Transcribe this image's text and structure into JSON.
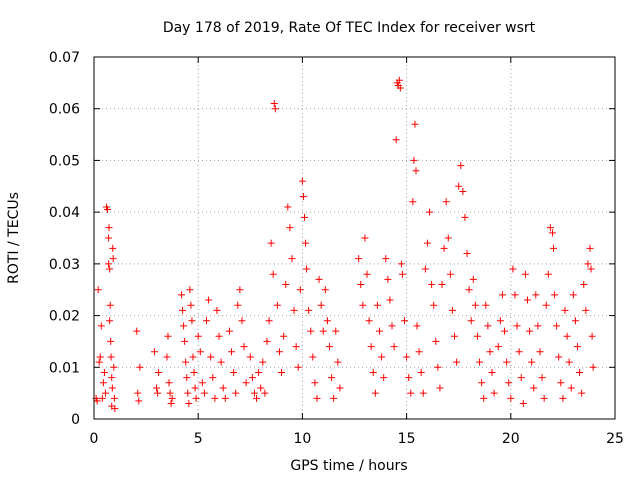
{
  "chart_data": {
    "type": "scatter",
    "title": "Day 178 of 2019, Rate Of TEC Index for receiver wsrt",
    "xlabel": "GPS time / hours",
    "ylabel": "ROTI / TECUs",
    "xlim": [
      0,
      25
    ],
    "ylim": [
      0,
      0.07
    ],
    "xticks": [
      0,
      5,
      10,
      15,
      20,
      25
    ],
    "yticks": [
      0,
      0.01,
      0.02,
      0.03,
      0.04,
      0.05,
      0.06,
      0.07
    ],
    "xtick_labels": [
      "0",
      "5",
      "10",
      "15",
      "20",
      "25"
    ],
    "ytick_labels": [
      "0",
      "0.01",
      "0.02",
      "0.03",
      "0.04",
      "0.05",
      "0.06",
      "0.07"
    ],
    "grid": true,
    "marker": "+",
    "color": "#ff0000",
    "series": [
      {
        "name": "ROTI",
        "points": [
          [
            0.1,
            0.004
          ],
          [
            0.15,
            0.0035
          ],
          [
            0.2,
            0.025
          ],
          [
            0.25,
            0.011
          ],
          [
            0.3,
            0.012
          ],
          [
            0.35,
            0.018
          ],
          [
            0.4,
            0.004
          ],
          [
            0.45,
            0.007
          ],
          [
            0.5,
            0.009
          ],
          [
            0.55,
            0.005
          ],
          [
            0.6,
            0.041
          ],
          [
            0.65,
            0.0405
          ],
          [
            0.7,
            0.035
          ],
          [
            0.72,
            0.037
          ],
          [
            0.75,
            0.029
          ],
          [
            0.78,
            0.022
          ],
          [
            0.8,
            0.015
          ],
          [
            0.82,
            0.012
          ],
          [
            0.85,
            0.008
          ],
          [
            0.88,
            0.006
          ],
          [
            0.9,
            0.033
          ],
          [
            0.92,
            0.031
          ],
          [
            0.95,
            0.01
          ],
          [
            0.98,
            0.004
          ],
          [
            1.0,
            0.002
          ],
          [
            0.85,
            0.0025
          ],
          [
            0.75,
            0.019
          ],
          [
            0.7,
            0.03
          ],
          [
            2.05,
            0.017
          ],
          [
            2.1,
            0.005
          ],
          [
            2.15,
            0.0035
          ],
          [
            2.2,
            0.01
          ],
          [
            2.9,
            0.013
          ],
          [
            3.0,
            0.006
          ],
          [
            3.05,
            0.005
          ],
          [
            3.1,
            0.009
          ],
          [
            3.5,
            0.012
          ],
          [
            3.55,
            0.016
          ],
          [
            3.6,
            0.007
          ],
          [
            3.65,
            0.005
          ],
          [
            3.7,
            0.003
          ],
          [
            3.75,
            0.004
          ],
          [
            4.2,
            0.024
          ],
          [
            4.25,
            0.021
          ],
          [
            4.3,
            0.018
          ],
          [
            4.35,
            0.015
          ],
          [
            4.4,
            0.011
          ],
          [
            4.45,
            0.008
          ],
          [
            4.5,
            0.005
          ],
          [
            4.55,
            0.003
          ],
          [
            4.6,
            0.025
          ],
          [
            4.65,
            0.022
          ],
          [
            4.7,
            0.019
          ],
          [
            4.75,
            0.012
          ],
          [
            4.8,
            0.009
          ],
          [
            4.85,
            0.006
          ],
          [
            4.9,
            0.004
          ],
          [
            5.0,
            0.016
          ],
          [
            5.1,
            0.013
          ],
          [
            5.2,
            0.007
          ],
          [
            5.3,
            0.005
          ],
          [
            5.4,
            0.019
          ],
          [
            5.5,
            0.023
          ],
          [
            5.6,
            0.012
          ],
          [
            5.7,
            0.008
          ],
          [
            5.8,
            0.004
          ],
          [
            5.9,
            0.021
          ],
          [
            6.0,
            0.016
          ],
          [
            6.1,
            0.011
          ],
          [
            6.2,
            0.006
          ],
          [
            6.3,
            0.004
          ],
          [
            6.5,
            0.017
          ],
          [
            6.6,
            0.013
          ],
          [
            6.7,
            0.009
          ],
          [
            6.8,
            0.005
          ],
          [
            6.9,
            0.022
          ],
          [
            7.0,
            0.025
          ],
          [
            7.1,
            0.019
          ],
          [
            7.2,
            0.014
          ],
          [
            7.3,
            0.007
          ],
          [
            7.5,
            0.012
          ],
          [
            7.6,
            0.008
          ],
          [
            7.7,
            0.005
          ],
          [
            7.8,
            0.004
          ],
          [
            7.9,
            0.009
          ],
          [
            8.0,
            0.006
          ],
          [
            8.1,
            0.011
          ],
          [
            8.2,
            0.005
          ],
          [
            8.3,
            0.015
          ],
          [
            8.4,
            0.019
          ],
          [
            8.5,
            0.034
          ],
          [
            8.6,
            0.028
          ],
          [
            8.65,
            0.061
          ],
          [
            8.7,
            0.06
          ],
          [
            8.8,
            0.022
          ],
          [
            8.9,
            0.013
          ],
          [
            9.0,
            0.009
          ],
          [
            9.1,
            0.016
          ],
          [
            9.2,
            0.026
          ],
          [
            9.3,
            0.041
          ],
          [
            9.4,
            0.037
          ],
          [
            9.5,
            0.031
          ],
          [
            9.6,
            0.021
          ],
          [
            9.7,
            0.014
          ],
          [
            9.8,
            0.01
          ],
          [
            9.9,
            0.025
          ],
          [
            10.0,
            0.046
          ],
          [
            10.05,
            0.043
          ],
          [
            10.1,
            0.039
          ],
          [
            10.15,
            0.034
          ],
          [
            10.2,
            0.029
          ],
          [
            10.3,
            0.021
          ],
          [
            10.4,
            0.017
          ],
          [
            10.5,
            0.012
          ],
          [
            10.6,
            0.007
          ],
          [
            10.7,
            0.004
          ],
          [
            10.8,
            0.027
          ],
          [
            10.9,
            0.022
          ],
          [
            11.0,
            0.017
          ],
          [
            11.1,
            0.025
          ],
          [
            11.2,
            0.019
          ],
          [
            11.3,
            0.014
          ],
          [
            11.4,
            0.008
          ],
          [
            11.5,
            0.004
          ],
          [
            11.6,
            0.017
          ],
          [
            11.7,
            0.011
          ],
          [
            11.8,
            0.006
          ],
          [
            12.7,
            0.031
          ],
          [
            12.8,
            0.026
          ],
          [
            12.9,
            0.022
          ],
          [
            13.0,
            0.035
          ],
          [
            13.1,
            0.028
          ],
          [
            13.2,
            0.019
          ],
          [
            13.3,
            0.014
          ],
          [
            13.4,
            0.009
          ],
          [
            13.5,
            0.005
          ],
          [
            13.6,
            0.022
          ],
          [
            13.7,
            0.017
          ],
          [
            13.8,
            0.012
          ],
          [
            13.9,
            0.008
          ],
          [
            14.0,
            0.031
          ],
          [
            14.1,
            0.027
          ],
          [
            14.2,
            0.023
          ],
          [
            14.3,
            0.018
          ],
          [
            14.4,
            0.014
          ],
          [
            14.5,
            0.054
          ],
          [
            14.55,
            0.065
          ],
          [
            14.6,
            0.0645
          ],
          [
            14.65,
            0.0655
          ],
          [
            14.7,
            0.064
          ],
          [
            14.75,
            0.03
          ],
          [
            14.8,
            0.028
          ],
          [
            14.9,
            0.019
          ],
          [
            15.0,
            0.012
          ],
          [
            15.1,
            0.008
          ],
          [
            15.2,
            0.005
          ],
          [
            15.3,
            0.042
          ],
          [
            15.35,
            0.05
          ],
          [
            15.4,
            0.057
          ],
          [
            15.45,
            0.048
          ],
          [
            15.5,
            0.018
          ],
          [
            15.6,
            0.013
          ],
          [
            15.7,
            0.009
          ],
          [
            15.8,
            0.005
          ],
          [
            15.9,
            0.029
          ],
          [
            16.0,
            0.034
          ],
          [
            16.1,
            0.04
          ],
          [
            16.2,
            0.026
          ],
          [
            16.3,
            0.022
          ],
          [
            16.4,
            0.015
          ],
          [
            16.5,
            0.01
          ],
          [
            16.6,
            0.006
          ],
          [
            16.7,
            0.026
          ],
          [
            16.8,
            0.033
          ],
          [
            16.9,
            0.042
          ],
          [
            17.0,
            0.035
          ],
          [
            17.1,
            0.028
          ],
          [
            17.2,
            0.021
          ],
          [
            17.3,
            0.016
          ],
          [
            17.4,
            0.011
          ],
          [
            17.5,
            0.045
          ],
          [
            17.6,
            0.049
          ],
          [
            17.7,
            0.044
          ],
          [
            17.8,
            0.039
          ],
          [
            17.9,
            0.032
          ],
          [
            18.0,
            0.025
          ],
          [
            18.1,
            0.019
          ],
          [
            18.2,
            0.027
          ],
          [
            18.3,
            0.022
          ],
          [
            18.4,
            0.016
          ],
          [
            18.5,
            0.011
          ],
          [
            18.6,
            0.007
          ],
          [
            18.7,
            0.004
          ],
          [
            18.8,
            0.022
          ],
          [
            18.9,
            0.018
          ],
          [
            19.0,
            0.013
          ],
          [
            19.1,
            0.009
          ],
          [
            19.2,
            0.005
          ],
          [
            19.4,
            0.014
          ],
          [
            19.5,
            0.019
          ],
          [
            19.6,
            0.024
          ],
          [
            19.7,
            0.017
          ],
          [
            19.8,
            0.011
          ],
          [
            19.9,
            0.007
          ],
          [
            20.0,
            0.004
          ],
          [
            20.1,
            0.029
          ],
          [
            20.2,
            0.024
          ],
          [
            20.3,
            0.018
          ],
          [
            20.4,
            0.013
          ],
          [
            20.5,
            0.008
          ],
          [
            20.6,
            0.003
          ],
          [
            20.7,
            0.028
          ],
          [
            20.8,
            0.023
          ],
          [
            20.9,
            0.017
          ],
          [
            21.0,
            0.011
          ],
          [
            21.1,
            0.006
          ],
          [
            21.2,
            0.024
          ],
          [
            21.3,
            0.018
          ],
          [
            21.4,
            0.013
          ],
          [
            21.5,
            0.008
          ],
          [
            21.6,
            0.004
          ],
          [
            21.7,
            0.022
          ],
          [
            21.8,
            0.028
          ],
          [
            21.9,
            0.037
          ],
          [
            22.0,
            0.036
          ],
          [
            22.05,
            0.033
          ],
          [
            22.1,
            0.024
          ],
          [
            22.2,
            0.018
          ],
          [
            22.3,
            0.012
          ],
          [
            22.4,
            0.007
          ],
          [
            22.5,
            0.004
          ],
          [
            22.6,
            0.021
          ],
          [
            22.7,
            0.016
          ],
          [
            22.8,
            0.011
          ],
          [
            22.9,
            0.006
          ],
          [
            23.0,
            0.024
          ],
          [
            23.1,
            0.019
          ],
          [
            23.2,
            0.014
          ],
          [
            23.3,
            0.009
          ],
          [
            23.4,
            0.005
          ],
          [
            23.5,
            0.026
          ],
          [
            23.6,
            0.021
          ],
          [
            23.7,
            0.03
          ],
          [
            23.8,
            0.033
          ],
          [
            23.85,
            0.029
          ],
          [
            23.9,
            0.016
          ],
          [
            23.95,
            0.01
          ]
        ]
      }
    ]
  }
}
